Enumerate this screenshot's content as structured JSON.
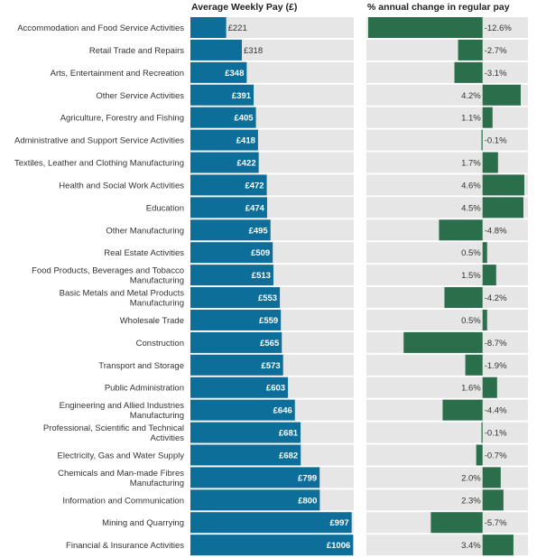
{
  "chart_data": {
    "type": "bar",
    "panels": [
      {
        "title": "Average Weekly Pay (£)",
        "value_prefix": "£",
        "value_suffix": "",
        "range": [
          0,
          1010
        ]
      },
      {
        "title": "% annual change in regular pay",
        "value_prefix": "",
        "value_suffix": "%",
        "range": [
          -12.8,
          5.0
        ]
      }
    ],
    "categories": [
      [
        "Accommodation and Food Service Activities"
      ],
      [
        "Retail Trade and Repairs"
      ],
      [
        "Arts, Entertainment and Recreation"
      ],
      [
        "Other Service Activities"
      ],
      [
        "Agriculture, Forestry and Fishing"
      ],
      [
        "Administrative and Support Service Activities"
      ],
      [
        "Textiles, Leather and Clothing Manufacturing"
      ],
      [
        "Health and Social Work Activities"
      ],
      [
        "Education"
      ],
      [
        "Other Manufacturing"
      ],
      [
        "Real Estate Activities"
      ],
      [
        "Food Products, Beverages and Tobacco",
        "Manufacturing"
      ],
      [
        "Basic Metals and Metal Products",
        "Manufacturing"
      ],
      [
        "Wholesale Trade"
      ],
      [
        "Construction"
      ],
      [
        "Transport and Storage"
      ],
      [
        "Public Administration"
      ],
      [
        "Engineering and Allied Industries",
        "Manufacturing"
      ],
      [
        "Professional, Scientific and Technical",
        "Activities"
      ],
      [
        "Electricity, Gas and Water Supply"
      ],
      [
        "Chemicals and Man-made Fibres",
        "Manufacturing"
      ],
      [
        "Information and Communication"
      ],
      [
        "Mining and Quarrying"
      ],
      [
        "Financial & Insurance Activities"
      ]
    ],
    "weekly_pay_labels": [
      "£221",
      "£318",
      "£348",
      "£391",
      "£405",
      "£418",
      "£422",
      "£472",
      "£474",
      "£495",
      "£509",
      "£513",
      "£553",
      "£559",
      "£565",
      "£573",
      "£603",
      "£646",
      "£681",
      "£682",
      "£799",
      "£800",
      "£997",
      "£1006"
    ],
    "pay_change_labels": [
      "-12.6%",
      "-2.7%",
      "-3.1%",
      "4.2%",
      "1.1%",
      "-0.1%",
      "1.7%",
      "4.6%",
      "4.5%",
      "-4.8%",
      "0.5%",
      "1.5%",
      "-4.2%",
      "0.5%",
      "-8.7%",
      "-1.9%",
      "1.6%",
      "-4.4%",
      "-0.1%",
      "-0.7%",
      "2.0%",
      "2.3%",
      "-5.7%",
      "3.4%"
    ],
    "series": [
      {
        "values": [
          221,
          318,
          348,
          391,
          405,
          418,
          422,
          472,
          474,
          495,
          509,
          513,
          553,
          559,
          565,
          573,
          603,
          646,
          681,
          682,
          799,
          800,
          997,
          1006
        ]
      },
      {
        "values": [
          -12.6,
          -2.7,
          -3.1,
          4.2,
          1.1,
          -0.1,
          1.7,
          4.6,
          4.5,
          -4.8,
          0.5,
          1.5,
          -4.2,
          0.5,
          -8.7,
          -1.9,
          1.6,
          -4.4,
          -0.1,
          -0.7,
          2.0,
          2.3,
          -5.7,
          3.4
        ]
      }
    ],
    "colors": {
      "pay_bar": "#0d6e99",
      "change_bar": "#2a6e4b",
      "track": "#e6e6e6"
    }
  }
}
